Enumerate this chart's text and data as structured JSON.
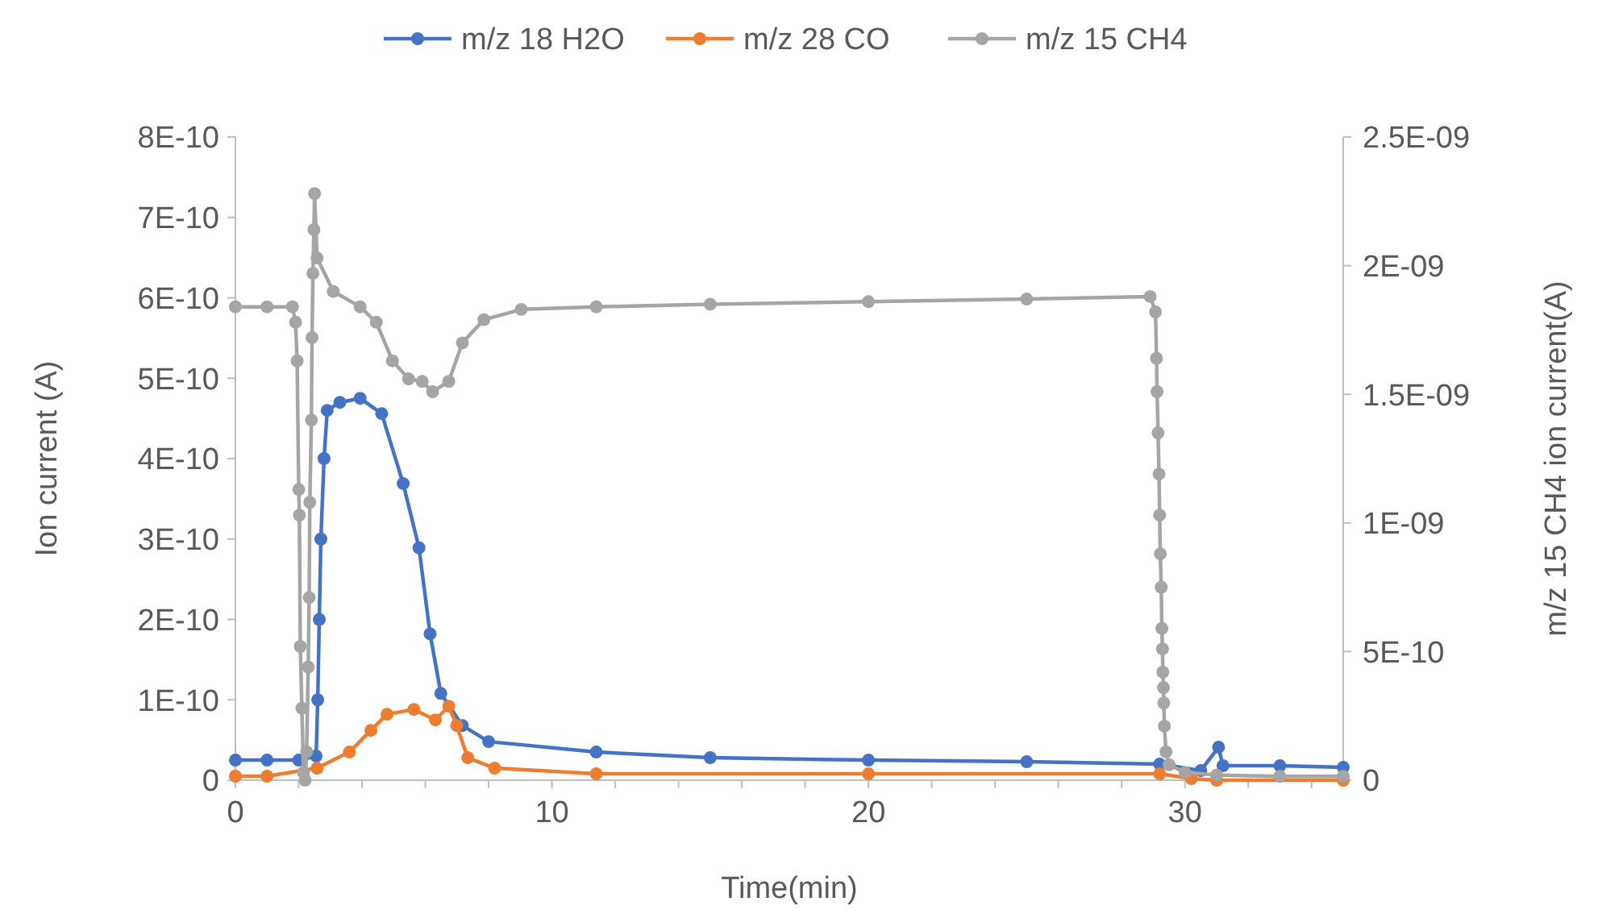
{
  "chart_data": {
    "type": "line",
    "xlabel": "Time(min)",
    "ylabel": "Ion current (A)",
    "y2label": "m/z 15 CH4 ion current(A)",
    "legend": "top",
    "marker": "circle",
    "grid": false,
    "xlim": [
      0,
      35
    ],
    "xticks": [
      0,
      {
        "value": 2,
        "label": null
      },
      {
        "value": 4,
        "label": null
      },
      {
        "value": 6,
        "label": null
      },
      {
        "value": 8,
        "label": null
      },
      10,
      {
        "value": 12,
        "label": null
      },
      {
        "value": 14,
        "label": null
      },
      {
        "value": 16,
        "label": null
      },
      {
        "value": 18,
        "label": null
      },
      20,
      {
        "value": 22,
        "label": null
      },
      {
        "value": 24,
        "label": null
      },
      {
        "value": 26,
        "label": null
      },
      {
        "value": 28,
        "label": null
      },
      30,
      {
        "value": 32,
        "label": null
      },
      {
        "value": 34,
        "label": null
      }
    ],
    "ylim": [
      0,
      8e-10
    ],
    "yticks": [
      0,
      {
        "value": 1e-10,
        "label": "1E-10"
      },
      {
        "value": 2e-10,
        "label": "2E-10"
      },
      {
        "value": 3e-10,
        "label": "3E-10"
      },
      {
        "value": 4e-10,
        "label": "4E-10"
      },
      {
        "value": 5e-10,
        "label": "5E-10"
      },
      {
        "value": 6e-10,
        "label": "6E-10"
      },
      {
        "value": 7e-10,
        "label": "7E-10"
      },
      {
        "value": 8e-10,
        "label": "8E-10"
      }
    ],
    "y2lim": [
      0,
      2.5e-09
    ],
    "y2ticks": [
      0,
      {
        "value": 5e-10,
        "label": "5E-10"
      },
      {
        "value": 1e-09,
        "label": "1E-09"
      },
      {
        "value": 1.5e-09,
        "label": "1.5E-09"
      },
      {
        "value": 2e-09,
        "label": "2E-09"
      },
      {
        "value": 2.5e-09,
        "label": "2.5E-09"
      }
    ],
    "series": [
      {
        "name": "m/z 18 H2O",
        "color": "#4472c4",
        "x": [
          0,
          1,
          2,
          2.55,
          2.6,
          2.65,
          2.7,
          2.8,
          2.9,
          3.3,
          3.94,
          4.62,
          5.3,
          5.8,
          6.15,
          6.49,
          7.17,
          8,
          11.4,
          15,
          20,
          25,
          29.2,
          30.5,
          31.06,
          31.2,
          33,
          35
        ],
        "values": [
          2.5e-11,
          2.5e-11,
          2.5e-11,
          3e-11,
          1e-10,
          2e-10,
          3e-10,
          4e-10,
          4.6e-10,
          4.7e-10,
          4.75e-10,
          4.56e-10,
          3.69e-10,
          2.89e-10,
          1.82e-10,
          1.08e-10,
          6.8e-11,
          4.8e-11,
          3.5e-11,
          2.8e-11,
          2.5e-11,
          2.3e-11,
          2e-11,
          1.2e-11,
          4.1e-11,
          1.8e-11,
          1.8e-11,
          1.6e-11
        ]
      },
      {
        "name": "m/z 28 CO",
        "color": "#ed7d31",
        "x": [
          0,
          1,
          2.58,
          3.6,
          4.28,
          4.79,
          5.64,
          6.32,
          6.74,
          6.99,
          7.34,
          8.19,
          11.4,
          20,
          29.2,
          30.2,
          31,
          35
        ],
        "values": [
          5e-12,
          5e-12,
          1.5e-11,
          3.5e-11,
          6.2e-11,
          8.2e-11,
          8.8e-11,
          7.5e-11,
          9.2e-11,
          6.8e-11,
          2.8e-11,
          1.5e-11,
          8e-12,
          8e-12,
          8e-12,
          2e-12,
          0,
          0
        ]
      },
      {
        "name": "m/z 15 CH4",
        "color": "#a5a5a5",
        "axis": "y2",
        "x": [
          0,
          1,
          1.8,
          1.9,
          1.95,
          2.0,
          2.02,
          2.05,
          2.1,
          2.15,
          2.2,
          2.25,
          2.3,
          2.33,
          2.35,
          2.4,
          2.42,
          2.45,
          2.48,
          2.5,
          2.58,
          3.09,
          3.94,
          4.45,
          4.96,
          5.47,
          5.9,
          6.23,
          6.74,
          7.17,
          7.85,
          9.03,
          11.4,
          15,
          20,
          25,
          28.9,
          29.07,
          29.1,
          29.12,
          29.15,
          29.18,
          29.2,
          29.22,
          29.25,
          29.27,
          29.29,
          29.3,
          29.32,
          29.33,
          29.35,
          29.4,
          29.5,
          30,
          31,
          33,
          35
        ],
        "values": [
          1.84e-09,
          1.84e-09,
          1.84e-09,
          1.78e-09,
          1.63e-09,
          1.13e-09,
          1.03e-09,
          5.2e-10,
          2.8e-10,
          3e-11,
          0,
          1.1e-10,
          4.4e-10,
          7.1e-10,
          1.08e-09,
          1.4e-09,
          1.72e-09,
          1.97e-09,
          2.14e-09,
          2.28e-09,
          2.03e-09,
          1.9e-09,
          1.84e-09,
          1.78e-09,
          1.63e-09,
          1.56e-09,
          1.55e-09,
          1.51e-09,
          1.55e-09,
          1.7e-09,
          1.79e-09,
          1.83e-09,
          1.84e-09,
          1.85e-09,
          1.86e-09,
          1.87e-09,
          1.88e-09,
          1.82e-09,
          1.64e-09,
          1.51e-09,
          1.35e-09,
          1.19e-09,
          1.03e-09,
          8.8e-10,
          7.5e-10,
          5.9e-10,
          5.1e-10,
          4.2e-10,
          3.6e-10,
          3e-10,
          2.1e-10,
          1.1e-10,
          6e-11,
          3e-11,
          2e-11,
          1.5e-11,
          1.5e-11
        ]
      }
    ]
  }
}
